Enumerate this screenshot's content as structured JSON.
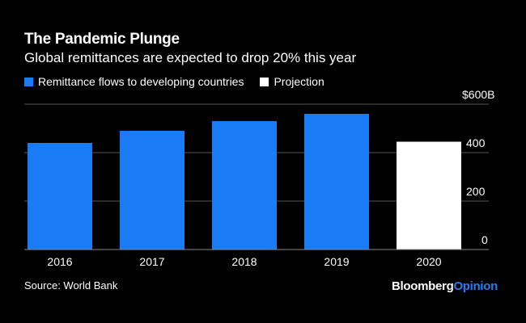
{
  "header": {
    "title": "The Pandemic Plunge",
    "subtitle": "Global remittances are expected to drop 20% this year"
  },
  "legend": [
    {
      "label": "Remittance flows to developing countries",
      "color": "#1a7cf5"
    },
    {
      "label": "Projection",
      "color": "#ffffff"
    }
  ],
  "footer": {
    "source": "Source: World Bank",
    "brand_part1": "Bloomberg",
    "brand_part2": "Opinion"
  },
  "chart_data": {
    "type": "bar",
    "title": "The Pandemic Plunge",
    "subtitle": "Global remittances are expected to drop 20% this year",
    "categories": [
      "2016",
      "2017",
      "2018",
      "2019",
      "2020"
    ],
    "series": [
      {
        "name": "Remittance flows to developing countries",
        "values": [
          440,
          490,
          530,
          560,
          null
        ],
        "color": "#1a7cf5"
      },
      {
        "name": "Projection",
        "values": [
          null,
          null,
          null,
          null,
          445
        ],
        "color": "#ffffff"
      }
    ],
    "ylim": [
      0,
      600
    ],
    "yticks": [
      0,
      200,
      400,
      600
    ],
    "ytick_labels": [
      "0",
      "200",
      "400",
      "$600B"
    ],
    "y_axis_side": "right",
    "grid": true,
    "xlabel": "",
    "ylabel": ""
  }
}
